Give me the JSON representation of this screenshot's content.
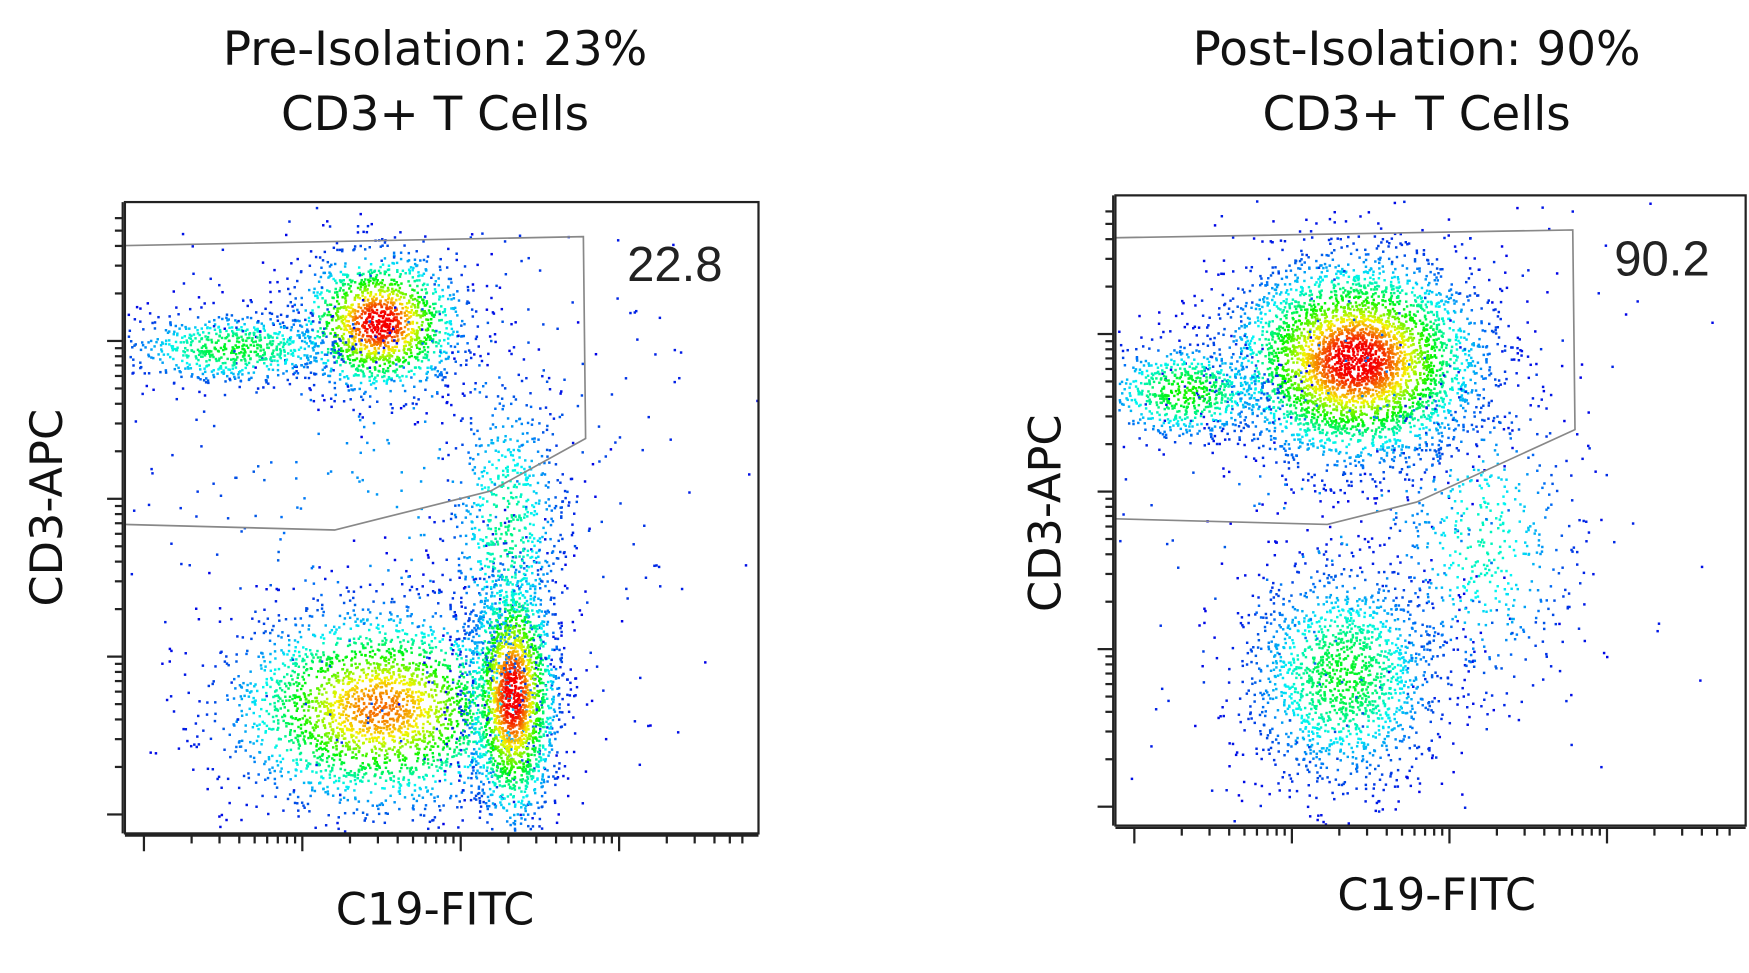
{
  "panels": [
    {
      "title_lines": [
        "Pre-Isolation: 23%",
        "CD3+ T Cells"
      ],
      "x_label": "C19-FITC",
      "y_label": "CD3-APC",
      "gate_value": 22.8
    },
    {
      "title_lines": [
        "Post-Isolation: 90%",
        "CD3+ T Cells"
      ],
      "x_label": "C19-FITC",
      "y_label": "CD3-APC",
      "gate_value": 90.2
    }
  ]
}
